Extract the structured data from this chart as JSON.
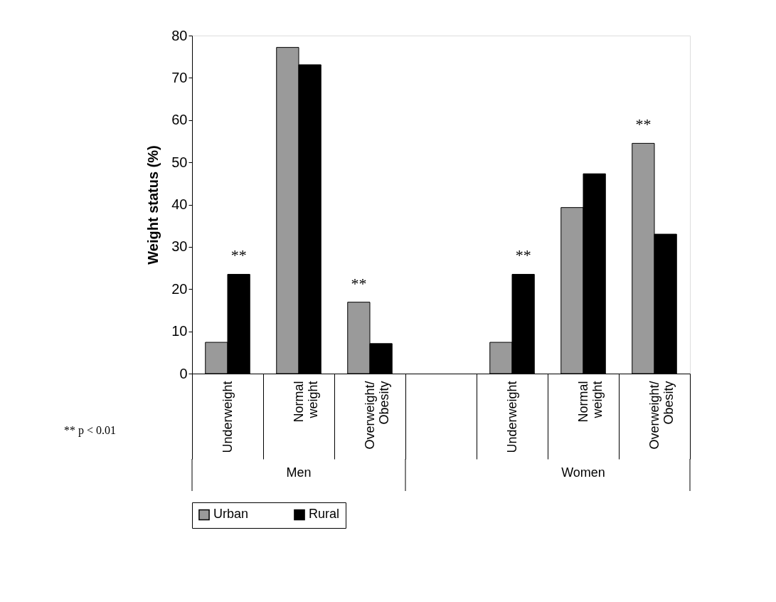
{
  "chart_data": {
    "type": "bar",
    "ylabel": "Weight status (%)",
    "categories": [
      "Underweight",
      "Normal weight",
      "Overweight/ Obesity",
      null,
      "Underweight",
      "Normal weight",
      "Overweight/ Obesity"
    ],
    "series": [
      {
        "name": "Urban",
        "color": "#9a9a9a",
        "values": [
          7.4,
          77.2,
          16.9,
          null,
          7.4,
          39.3,
          54.5
        ]
      },
      {
        "name": "Rural",
        "color": "#000000",
        "values": [
          23.5,
          73.1,
          7.1,
          null,
          23.5,
          47.3,
          33.0
        ]
      }
    ],
    "ylim": [
      0,
      80
    ],
    "yticks": [
      0,
      10,
      20,
      30,
      40,
      50,
      60,
      70,
      80
    ],
    "grid": false,
    "legend": "bottom",
    "annotations": [
      "**",
      "**",
      "**",
      "**",
      "Men",
      "Women",
      "** p < 0.01"
    ]
  }
}
